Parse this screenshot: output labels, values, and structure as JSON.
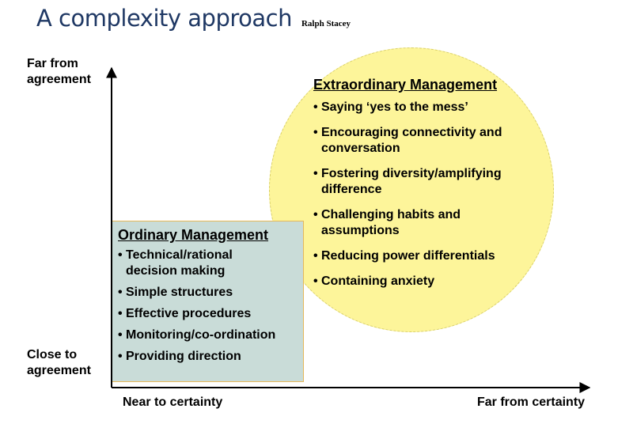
{
  "title": "A complexity approach",
  "subtitle": "Ralph Stacey",
  "axes": {
    "y_top": [
      "Far from",
      "agreement"
    ],
    "y_bottom": [
      "Close to",
      "agreement"
    ],
    "x_left": "Near to certainty",
    "x_right": "Far from certainty"
  },
  "extraordinary": {
    "heading": "Extraordinary Management",
    "items": [
      [
        "Saying ‘yes to the mess’"
      ],
      [
        "Encouraging connectivity and",
        "conversation"
      ],
      [
        "Fostering diversity/amplifying",
        "difference"
      ],
      [
        "Challenging habits and",
        "assumptions"
      ],
      [
        "Reducing power differentials"
      ],
      [
        "Containing anxiety"
      ]
    ]
  },
  "ordinary": {
    "heading": "Ordinary Management",
    "items": [
      [
        "Technical/rational",
        "decision making"
      ],
      [
        "Simple structures"
      ],
      [
        "Effective procedures"
      ],
      [
        "Monitoring/co-ordination"
      ],
      [
        "Providing direction"
      ]
    ]
  },
  "colors": {
    "title": "#1f3864",
    "circle_fill": "#fdf59a",
    "box_fill": "#c9dcd8",
    "box_border": "#e6b85a"
  }
}
